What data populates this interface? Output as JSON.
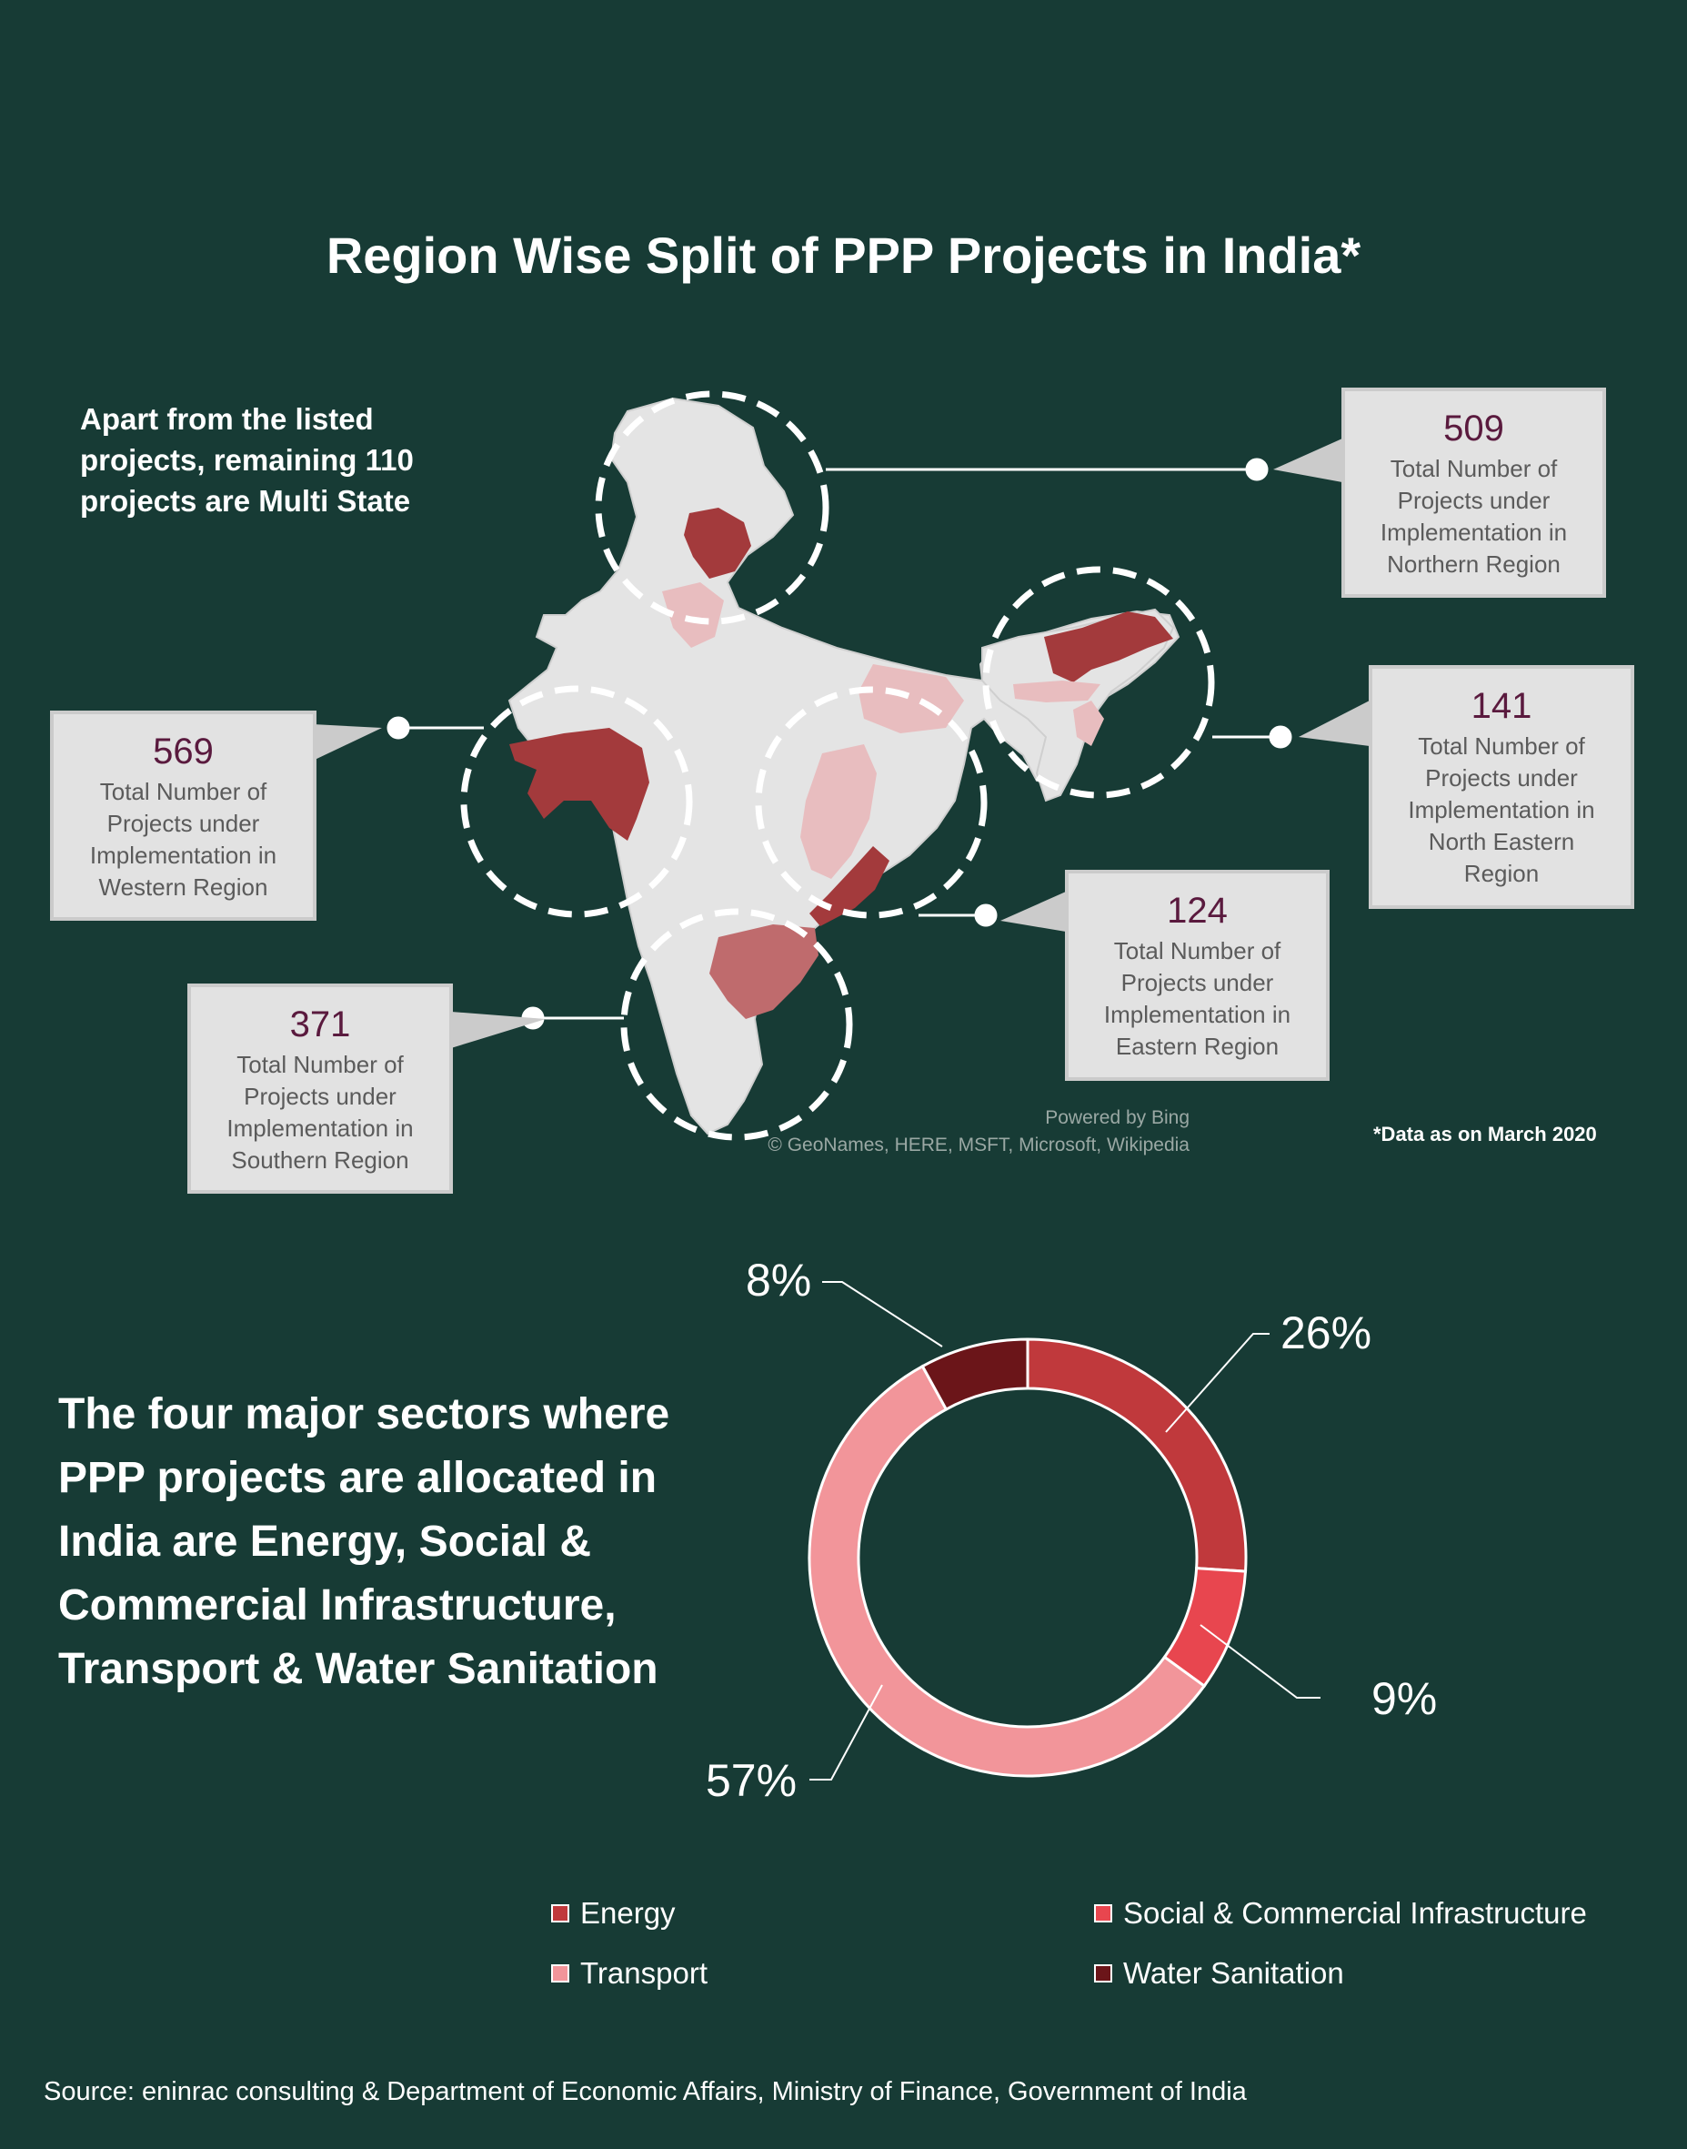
{
  "title": "Region Wise Split of PPP Projects in India*",
  "multi_state_note": "Apart from the listed projects, remaining 110 projects are Multi State",
  "data_note": "*Data as on March 2020",
  "map_credit": {
    "line1": "Powered by Bing",
    "line2": "© GeoNames, HERE, MSFT, Microsoft, Wikipedia"
  },
  "regions": [
    {
      "id": "north",
      "value": "509",
      "label": "Total Number of Projects under Implementation in Northern Region"
    },
    {
      "id": "northeast",
      "value": "141",
      "label": "Total Number of Projects under Implementation in North Eastern Region"
    },
    {
      "id": "west",
      "value": "569",
      "label": "Total Number of Projects under Implementation in Western Region"
    },
    {
      "id": "east",
      "value": "124",
      "label": "Total Number of Projects under Implementation in Eastern Region"
    },
    {
      "id": "south",
      "value": "371",
      "label": "Total Number of Projects under Implementation in Southern Region"
    }
  ],
  "sectors_text": "The four major sectors where PPP projects are allocated in India are Energy, Social & Commercial Infrastructure, Transport & Water Sanitation",
  "colors": {
    "background": "#173b35",
    "energy": "#c0393c",
    "social": "#e8464f",
    "transport": "#f2959a",
    "water": "#6b1519",
    "map_land": "#e4e4e4",
    "map_dark": "#a33a3c",
    "map_mid": "#bf6b6d",
    "map_light": "#e8bdbf"
  },
  "chart_data": {
    "type": "pie",
    "donut": true,
    "categories": [
      "Energy",
      "Social & Commercial Infrastructure",
      "Transport",
      "Water Sanitation"
    ],
    "values": [
      26,
      9,
      57,
      8
    ],
    "labels": [
      "26%",
      "9%",
      "57%",
      "8%"
    ],
    "legend_position": "bottom"
  },
  "source": "Source: eninrac consulting & Department of Economic Affairs, Ministry of Finance, Government of India"
}
